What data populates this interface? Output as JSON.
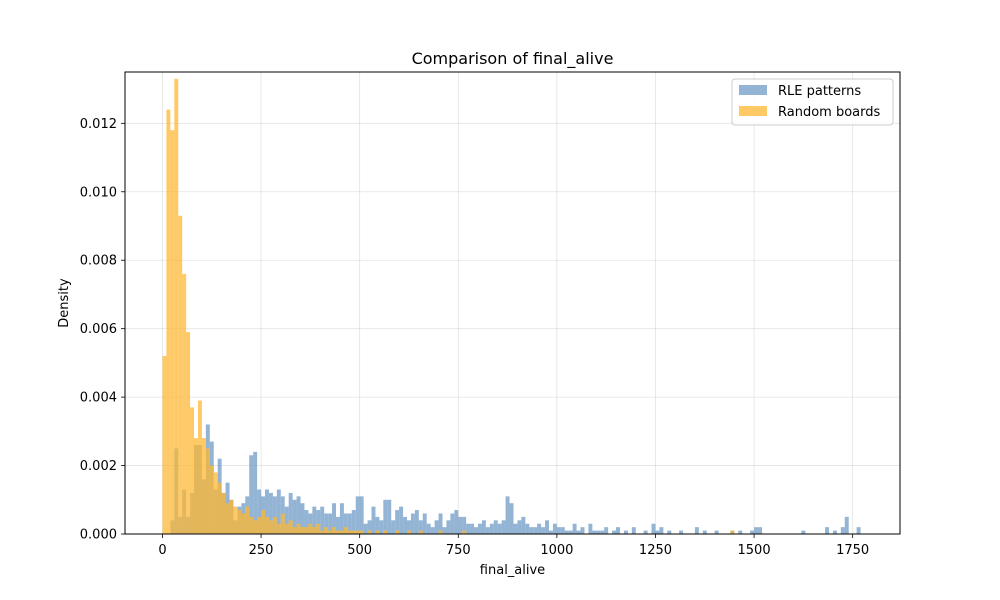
{
  "chart_data": {
    "type": "bar",
    "title": "Comparison of final_alive",
    "xlabel": "final_alive",
    "ylabel": "Density",
    "xlim": [
      -95,
      1870
    ],
    "ylim": [
      0,
      0.0135
    ],
    "xticks": [
      0,
      250,
      500,
      750,
      1000,
      1250,
      1500,
      1750
    ],
    "yticks": [
      0,
      0.002,
      0.004,
      0.006,
      0.008,
      0.01,
      0.012
    ],
    "ytick_labels": [
      "0.000",
      "0.002",
      "0.004",
      "0.006",
      "0.008",
      "0.010",
      "0.012"
    ],
    "grid": true,
    "legend_position": "top-right",
    "series": [
      {
        "name": "RLE patterns",
        "color": "#6f9bc6",
        "opacity": 0.75,
        "bin_width": 10,
        "bins": [
          [
            20,
            0.0004
          ],
          [
            30,
            0.0025
          ],
          [
            40,
            0.0005
          ],
          [
            50,
            0.0013
          ],
          [
            60,
            0.0005
          ],
          [
            70,
            0.0012
          ],
          [
            80,
            0.0026
          ],
          [
            90,
            0.0026
          ],
          [
            100,
            0.0016
          ],
          [
            110,
            0.0032
          ],
          [
            120,
            0.0027
          ],
          [
            130,
            0.0013
          ],
          [
            140,
            0.0022
          ],
          [
            150,
            0.0012
          ],
          [
            160,
            0.0015
          ],
          [
            170,
            0.001
          ],
          [
            180,
            0.0004
          ],
          [
            190,
            0.0008
          ],
          [
            200,
            0.0009
          ],
          [
            210,
            0.0011
          ],
          [
            220,
            0.0023
          ],
          [
            230,
            0.0024
          ],
          [
            240,
            0.0013
          ],
          [
            250,
            0.0011
          ],
          [
            260,
            0.0013
          ],
          [
            270,
            0.0012
          ],
          [
            280,
            0.0011
          ],
          [
            290,
            0.0013
          ],
          [
            300,
            0.0011
          ],
          [
            310,
            0.0008
          ],
          [
            320,
            0.0012
          ],
          [
            330,
            0.001
          ],
          [
            340,
            0.0011
          ],
          [
            350,
            0.0009
          ],
          [
            360,
            0.0007
          ],
          [
            370,
            0.0006
          ],
          [
            380,
            0.0008
          ],
          [
            390,
            0.0007
          ],
          [
            400,
            0.0008
          ],
          [
            410,
            0.0006
          ],
          [
            420,
            0.0006
          ],
          [
            430,
            0.0009
          ],
          [
            440,
            0.0005
          ],
          [
            450,
            0.0009
          ],
          [
            460,
            0.0006
          ],
          [
            470,
            0.0006
          ],
          [
            480,
            0.0007
          ],
          [
            490,
            0.0011
          ],
          [
            500,
            0.0011
          ],
          [
            510,
            0.0003
          ],
          [
            520,
            0.0004
          ],
          [
            530,
            0.0008
          ],
          [
            540,
            0.0005
          ],
          [
            550,
            0.0004
          ],
          [
            560,
            0.001
          ],
          [
            570,
            0.001
          ],
          [
            580,
            0.0004
          ],
          [
            590,
            0.0007
          ],
          [
            600,
            0.0008
          ],
          [
            610,
            0.0005
          ],
          [
            620,
            0.0004
          ],
          [
            630,
            0.0006
          ],
          [
            640,
            0.0007
          ],
          [
            650,
            0.0004
          ],
          [
            660,
            0.0006
          ],
          [
            670,
            0.0003
          ],
          [
            680,
            0.0002
          ],
          [
            690,
            0.0004
          ],
          [
            700,
            0.0006
          ],
          [
            710,
            0.0002
          ],
          [
            720,
            0.0004
          ],
          [
            730,
            0.0006
          ],
          [
            740,
            0.0007
          ],
          [
            750,
            0.0005
          ],
          [
            760,
            0.0005
          ],
          [
            770,
            0.0003
          ],
          [
            780,
            0.0003
          ],
          [
            790,
            0.0002
          ],
          [
            800,
            0.0003
          ],
          [
            810,
            0.0004
          ],
          [
            820,
            0.0002
          ],
          [
            830,
            0.0003
          ],
          [
            840,
            0.0004
          ],
          [
            850,
            0.0003
          ],
          [
            860,
            0.0004
          ],
          [
            870,
            0.0011
          ],
          [
            880,
            0.0009
          ],
          [
            890,
            0.0003
          ],
          [
            900,
            0.0004
          ],
          [
            910,
            0.0005
          ],
          [
            920,
            0.0003
          ],
          [
            930,
            0.0002
          ],
          [
            940,
            0.0002
          ],
          [
            950,
            0.0003
          ],
          [
            960,
            0.0002
          ],
          [
            970,
            0.0004
          ],
          [
            980,
            0.0001
          ],
          [
            990,
            0.0003
          ],
          [
            1000,
            0.0002
          ],
          [
            1010,
            0.0002
          ],
          [
            1020,
            0.0001
          ],
          [
            1030,
            0.0001
          ],
          [
            1040,
            0.0003
          ],
          [
            1050,
            0.0001
          ],
          [
            1060,
            0.0002
          ],
          [
            1080,
            0.0003
          ],
          [
            1090,
            0.0001
          ],
          [
            1100,
            0.0001
          ],
          [
            1110,
            0.0001
          ],
          [
            1120,
            0.0002
          ],
          [
            1140,
            0.0001
          ],
          [
            1150,
            0.0002
          ],
          [
            1170,
            0.0001
          ],
          [
            1190,
            0.0002
          ],
          [
            1220,
            0.0001
          ],
          [
            1240,
            0.0003
          ],
          [
            1250,
            0.0001
          ],
          [
            1260,
            0.0002
          ],
          [
            1280,
            0.0001
          ],
          [
            1310,
            0.0001
          ],
          [
            1350,
            0.0002
          ],
          [
            1370,
            0.0001
          ],
          [
            1400,
            0.0001
          ],
          [
            1440,
            0.0001
          ],
          [
            1460,
            0.0001
          ],
          [
            1490,
            0.0001
          ],
          [
            1500,
            0.0002
          ],
          [
            1510,
            0.0002
          ],
          [
            1620,
            0.0001
          ],
          [
            1680,
            0.0002
          ],
          [
            1700,
            0.0001
          ],
          [
            1720,
            0.0002
          ],
          [
            1730,
            0.0005
          ],
          [
            1760,
            0.0002
          ]
        ]
      },
      {
        "name": "Random boards",
        "color": "#ffb732",
        "opacity": 0.75,
        "bin_width": 10,
        "bins": [
          [
            0,
            0.0052
          ],
          [
            10,
            0.0124
          ],
          [
            20,
            0.0118
          ],
          [
            30,
            0.0133
          ],
          [
            40,
            0.0093
          ],
          [
            50,
            0.0076
          ],
          [
            60,
            0.0059
          ],
          [
            70,
            0.0037
          ],
          [
            80,
            0.0028
          ],
          [
            90,
            0.0039
          ],
          [
            100,
            0.0028
          ],
          [
            110,
            0.0025
          ],
          [
            120,
            0.002
          ],
          [
            130,
            0.0018
          ],
          [
            140,
            0.0015
          ],
          [
            150,
            0.0012
          ],
          [
            160,
            0.0009
          ],
          [
            170,
            0.001
          ],
          [
            180,
            0.0008
          ],
          [
            190,
            0.0007
          ],
          [
            200,
            0.0006
          ],
          [
            210,
            0.0008
          ],
          [
            220,
            0.0005
          ],
          [
            230,
            0.0004
          ],
          [
            240,
            0.0005
          ],
          [
            250,
            0.0007
          ],
          [
            260,
            0.0005
          ],
          [
            270,
            0.0004
          ],
          [
            280,
            0.0005
          ],
          [
            290,
            0.0003
          ],
          [
            300,
            0.0006
          ],
          [
            310,
            0.0003
          ],
          [
            320,
            0.0004
          ],
          [
            330,
            0.0002
          ],
          [
            340,
            0.0003
          ],
          [
            350,
            0.0002
          ],
          [
            360,
            0.0002
          ],
          [
            370,
            0.0003
          ],
          [
            380,
            0.0002
          ],
          [
            390,
            0.0003
          ],
          [
            400,
            0.0001
          ],
          [
            410,
            0.0002
          ],
          [
            420,
            0.0001
          ],
          [
            430,
            0.0002
          ],
          [
            440,
            0.0001
          ],
          [
            450,
            0.0001
          ],
          [
            460,
            0.0002
          ],
          [
            470,
            0.0001
          ],
          [
            480,
            0.0001
          ],
          [
            490,
            0.0001
          ],
          [
            500,
            0.0001
          ],
          [
            520,
            0.0001
          ],
          [
            540,
            0.0001
          ],
          [
            560,
            0.0001
          ],
          [
            590,
            0.0001
          ],
          [
            620,
            0.0001
          ],
          [
            650,
            0.0001
          ],
          [
            700,
            0.0001
          ],
          [
            760,
            0.0001
          ],
          [
            1440,
            0.0001
          ]
        ]
      }
    ]
  }
}
